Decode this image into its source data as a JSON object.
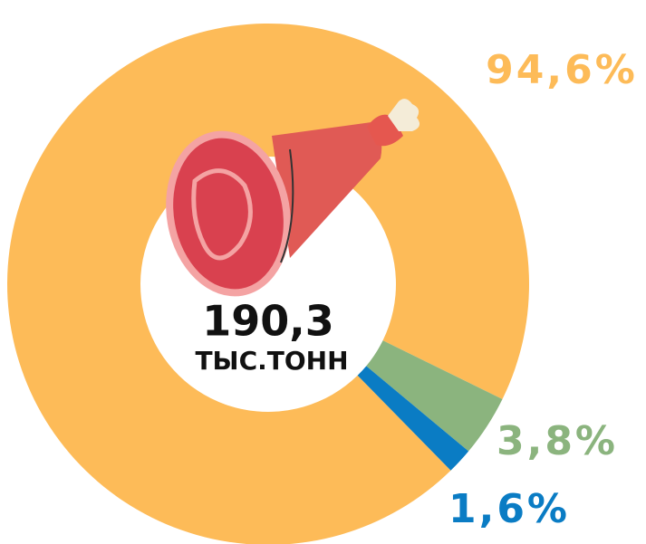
{
  "chart_data": {
    "type": "donut",
    "values": [
      94.6,
      3.8,
      1.6
    ],
    "value_labels": [
      "94,6%",
      "3,8%",
      "1,6%"
    ],
    "colors": [
      "#fdbb58",
      "#8bb47e",
      "#0a7cc4"
    ],
    "center_value": "190,3",
    "center_unit": "ТЫС.ТОНН"
  }
}
